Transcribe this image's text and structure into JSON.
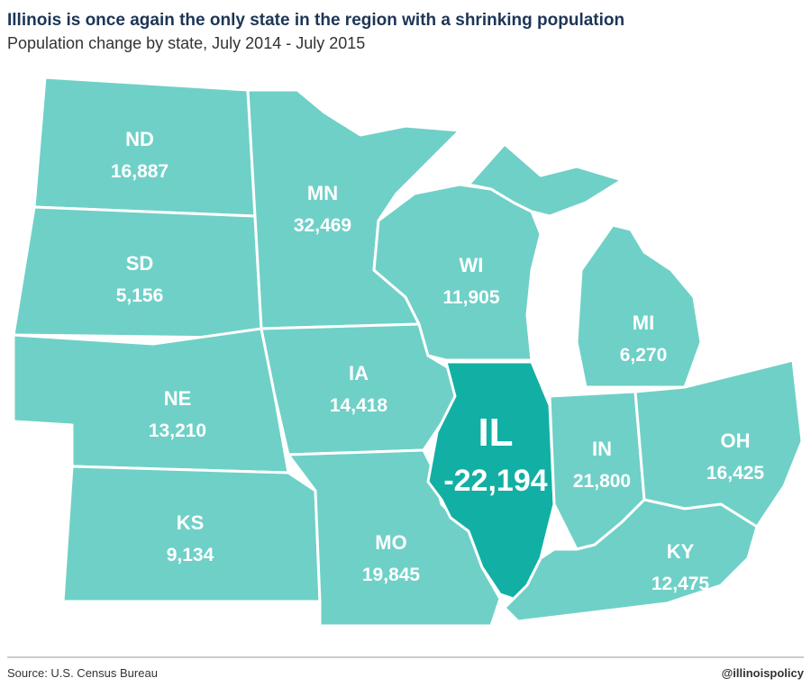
{
  "header": {
    "title": "Illinois is once again the only state in the region with a shrinking population",
    "subtitle": "Population change by state, July 2014 - July 2015"
  },
  "states": [
    {
      "abbr": "ND",
      "change": "16,887"
    },
    {
      "abbr": "SD",
      "change": "5,156"
    },
    {
      "abbr": "NE",
      "change": "13,210"
    },
    {
      "abbr": "KS",
      "change": "9,134"
    },
    {
      "abbr": "MN",
      "change": "32,469"
    },
    {
      "abbr": "IA",
      "change": "14,418"
    },
    {
      "abbr": "MO",
      "change": "19,845"
    },
    {
      "abbr": "WI",
      "change": "11,905"
    },
    {
      "abbr": "IL",
      "change": "-22,194"
    },
    {
      "abbr": "MI",
      "change": "6,270"
    },
    {
      "abbr": "IN",
      "change": "21,800"
    },
    {
      "abbr": "OH",
      "change": "16,425"
    },
    {
      "abbr": "KY",
      "change": "12,475"
    }
  ],
  "footer": {
    "source": "Source: U.S. Census Bureau",
    "credit": "@illinoispolicy"
  }
}
